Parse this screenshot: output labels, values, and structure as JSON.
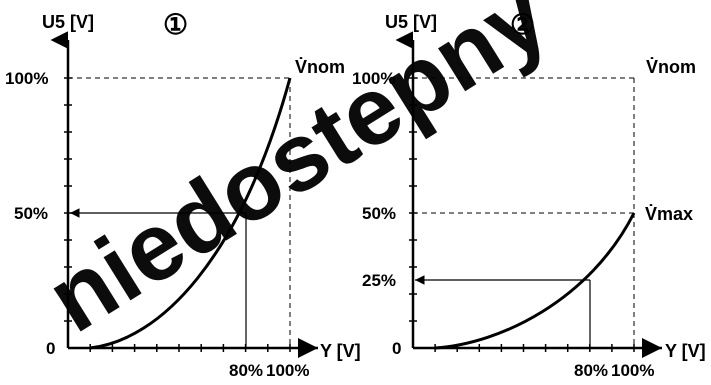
{
  "watermark": {
    "text": "niedostepny",
    "color": "#e10613"
  },
  "panels": [
    {
      "marker": "①",
      "y_axis_label": "U5 [V]",
      "x_axis_label": "Y [V]",
      "y_ticks": [
        "100%",
        "50%",
        "0"
      ],
      "x_ticks": [
        "80%",
        "100%"
      ],
      "curve_end_label": "V̇nom",
      "top_right_label": ""
    },
    {
      "marker": "②",
      "y_axis_label": "U5 [V]",
      "x_axis_label": "Y [V]",
      "y_ticks": [
        "100%",
        "50%",
        "25%",
        "0"
      ],
      "x_ticks": [
        "80%",
        "100%"
      ],
      "curve_end_label": "V̇max",
      "top_right_label": "V̇nom"
    }
  ],
  "chart_data": [
    {
      "type": "line",
      "x_unit": "Y [V] (%)",
      "y_unit": "U5 [V] (%)",
      "xlim": [
        0,
        100
      ],
      "ylim": [
        0,
        100
      ],
      "series": [
        {
          "values": [
            [
              0,
              0
            ],
            [
              20,
              4
            ],
            [
              40,
              13
            ],
            [
              60,
              29
            ],
            [
              80,
              50
            ],
            [
              90,
              70
            ],
            [
              100,
              100
            ]
          ]
        }
      ],
      "guides": [
        {
          "x": 80,
          "y": 50
        }
      ]
    },
    {
      "type": "line",
      "x_unit": "Y [V] (%)",
      "y_unit": "U5 [V] (%)",
      "xlim": [
        0,
        100
      ],
      "ylim": [
        0,
        100
      ],
      "series": [
        {
          "values": [
            [
              0,
              0
            ],
            [
              20,
              1
            ],
            [
              40,
              4
            ],
            [
              60,
              11
            ],
            [
              80,
              25
            ],
            [
              90,
              36
            ],
            [
              100,
              50
            ]
          ]
        }
      ],
      "guides": [
        {
          "x": 80,
          "y": 25
        }
      ]
    }
  ]
}
